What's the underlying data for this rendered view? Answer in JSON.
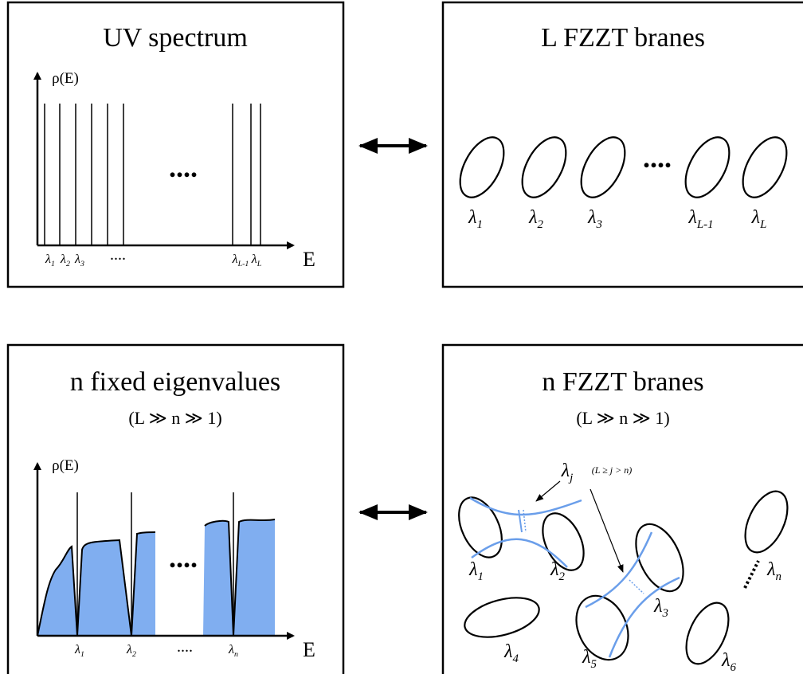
{
  "panels": [
    {
      "title": "UV spectrum",
      "y_axis": "ρ(E)",
      "x_axis": "E",
      "ellipsis_plot": "....",
      "ellipsis_axis": "....",
      "labels": [
        {
          "symbol": "λ",
          "sub": "1"
        },
        {
          "symbol": "λ",
          "sub": "2"
        },
        {
          "symbol": "λ",
          "sub": "3"
        },
        {
          "symbol": "λ",
          "sub": "L-1"
        },
        {
          "symbol": "λ",
          "sub": "L"
        }
      ]
    },
    {
      "title": "L FZZT branes",
      "ellipsis": "....",
      "labels": [
        {
          "symbol": "λ",
          "sub": "1"
        },
        {
          "symbol": "λ",
          "sub": "2"
        },
        {
          "symbol": "λ",
          "sub": "3"
        },
        {
          "symbol": "λ",
          "sub": "L-1"
        },
        {
          "symbol": "λ",
          "sub": "L"
        }
      ]
    },
    {
      "title": "n fixed eigenvalues",
      "subtitle": "(L ≫ n ≫ 1)",
      "y_axis": "ρ(E)",
      "x_axis": "E",
      "ellipsis_plot": "....",
      "ellipsis_axis": "....",
      "labels": [
        {
          "symbol": "λ",
          "sub": "1"
        },
        {
          "symbol": "λ",
          "sub": "2"
        },
        {
          "symbol": "λ",
          "sub": "n"
        }
      ]
    },
    {
      "title": "n FZZT branes",
      "subtitle": "(L ≫ n ≫ 1)",
      "annotation": {
        "symbol": "λ",
        "sub": "j",
        "note": "(L ≥ j > n)"
      },
      "labels": [
        {
          "symbol": "λ",
          "sub": "1"
        },
        {
          "symbol": "λ",
          "sub": "2"
        },
        {
          "symbol": "λ",
          "sub": "3"
        },
        {
          "symbol": "λ",
          "sub": "4"
        },
        {
          "symbol": "λ",
          "sub": "5"
        },
        {
          "symbol": "λ",
          "sub": "6"
        },
        {
          "symbol": "λ",
          "sub": "n"
        }
      ]
    }
  ]
}
